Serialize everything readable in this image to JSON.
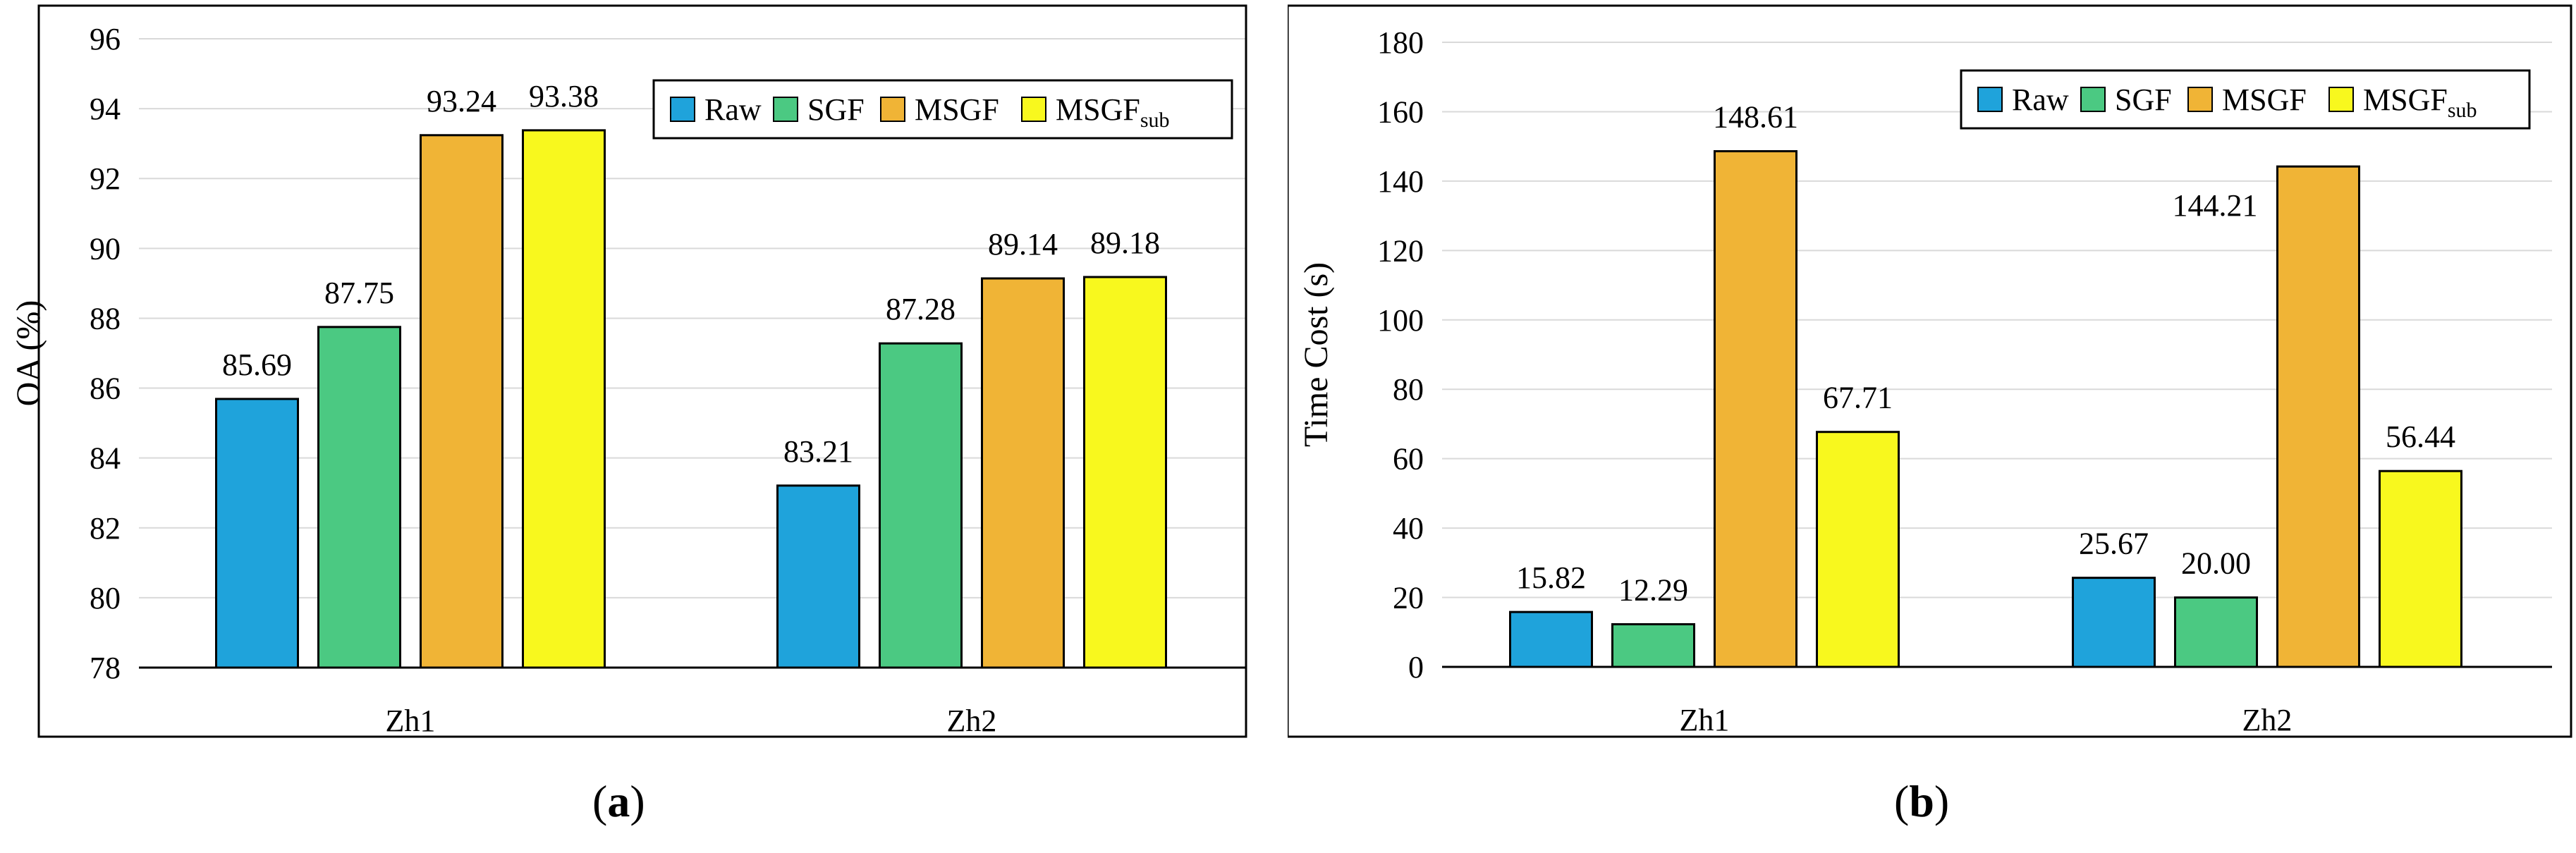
{
  "colors": {
    "raw": "#1fa3db",
    "sgf": "#4bc982",
    "msgf": "#f0b436",
    "msgf_sub": "#f8f81e"
  },
  "chart_data": [
    {
      "type": "bar",
      "id": "a",
      "caption_letter": "a",
      "categories": [
        "Zh1",
        "Zh2"
      ],
      "series": [
        {
          "name": "Raw",
          "sub": "",
          "color_key": "raw",
          "values": [
            85.69,
            83.21
          ],
          "labels": [
            "85.69",
            "83.21"
          ]
        },
        {
          "name": "SGF",
          "sub": "",
          "color_key": "sgf",
          "values": [
            87.75,
            87.28
          ],
          "labels": [
            "87.75",
            "87.28"
          ]
        },
        {
          "name": "MSGF",
          "sub": "",
          "color_key": "msgf",
          "values": [
            93.24,
            89.14
          ],
          "labels": [
            "93.24",
            "89.14"
          ]
        },
        {
          "name": "MSGF",
          "sub": "sub",
          "color_key": "msgf_sub",
          "values": [
            93.38,
            89.18
          ],
          "labels": [
            "93.38",
            "89.18"
          ]
        }
      ],
      "title": "",
      "xlabel": "",
      "ylabel": "OA (%)",
      "ylim": [
        78,
        96
      ],
      "yticks": [
        "78",
        "80",
        "82",
        "84",
        "86",
        "88",
        "90",
        "92",
        "94",
        "96"
      ],
      "grid": true,
      "legend": "top-right"
    },
    {
      "type": "bar",
      "id": "b",
      "caption_letter": "b",
      "categories": [
        "Zh1",
        "Zh2"
      ],
      "series": [
        {
          "name": "Raw",
          "sub": "",
          "color_key": "raw",
          "values": [
            15.82,
            25.67
          ],
          "labels": [
            "15.82",
            "25.67"
          ]
        },
        {
          "name": "SGF",
          "sub": "",
          "color_key": "sgf",
          "values": [
            12.29,
            20.0
          ],
          "labels": [
            "12.29",
            "20.00"
          ]
        },
        {
          "name": "MSGF",
          "sub": "",
          "color_key": "msgf",
          "values": [
            148.61,
            144.21
          ],
          "labels": [
            "148.61",
            "144.21"
          ]
        },
        {
          "name": "MSGF",
          "sub": "sub",
          "color_key": "msgf_sub",
          "values": [
            67.71,
            56.44
          ],
          "labels": [
            "67.71",
            "56.44"
          ]
        }
      ],
      "title": "",
      "xlabel": "",
      "ylabel": "Time Cost (s)",
      "ylim": [
        0,
        180
      ],
      "yticks": [
        "0",
        "20",
        "40",
        "60",
        "80",
        "100",
        "120",
        "140",
        "160",
        "180"
      ],
      "grid": true,
      "legend": "top-right"
    }
  ]
}
